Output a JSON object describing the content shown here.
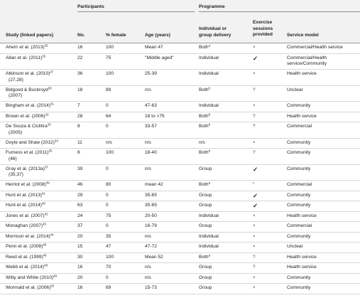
{
  "group_headers": {
    "participants": "Participants",
    "programme": "Programme"
  },
  "columns": {
    "study": "Study (linked papers)",
    "no": "No.",
    "female": "% female",
    "age": "Age (years)",
    "delivery": [
      "Individual or",
      "group delivery"
    ],
    "exercise": [
      "Exercise",
      "sessions",
      "provided"
    ],
    "service": "Service model"
  },
  "rows": [
    {
      "study": [
        "Ahern et al. (2013)"
      ],
      "study_sup": "25",
      "no": "16",
      "female": "100",
      "age": "Mean 47",
      "delivery": "Both",
      "delivery_sup": "a",
      "exercise": "x",
      "service": [
        "Commercial/Health service"
      ]
    },
    {
      "study": [
        "Allan et al. (2011)"
      ],
      "study_sup": "26",
      "no": "22",
      "female": "75",
      "age": "\"Middle aged\"",
      "delivery": "Individual",
      "delivery_sup": "",
      "exercise": "tick",
      "service": [
        "Commercial/Health",
        "service/Community"
      ]
    },
    {
      "study": [
        "Atkinson et al. (2010)",
        "(27,28)"
      ],
      "study_sup": "27",
      "no": "36",
      "female": "100",
      "age": "25-39",
      "delivery": "Individual",
      "delivery_sup": "",
      "exercise": "x",
      "service": [
        "Health service"
      ]
    },
    {
      "study": [
        "Bidgood & Buckroyd",
        "(2007)"
      ],
      "study_sup": "30",
      "no": "18",
      "female": "89",
      "age": "n/s",
      "delivery": "Both",
      "delivery_sup": "b",
      "exercise": "?",
      "service": [
        "Unclear"
      ]
    },
    {
      "study": [
        "Bingham et al. (2014)"
      ],
      "study_sup": "31",
      "no": "7",
      "female": "0",
      "age": "47-63",
      "delivery": "Individual",
      "delivery_sup": "",
      "exercise": "x",
      "service": [
        "Community"
      ]
    },
    {
      "study": [
        "Brown et al. (2006)"
      ],
      "study_sup": "32",
      "no": "28",
      "female": "64",
      "age": "18 to >75",
      "delivery": "Both",
      "delivery_sup": "b",
      "exercise": "?",
      "service": [
        "Health service"
      ]
    },
    {
      "study": [
        "De Souza & Ciclitira",
        "(2005)"
      ],
      "study_sup": "33",
      "no": "8",
      "female": "0",
      "age": "33-57",
      "delivery": "Both",
      "delivery_sup": "b",
      "exercise": "?",
      "service": [
        "Commercial"
      ]
    },
    {
      "study": [
        "Doyle and Shaw (2012)"
      ],
      "study_sup": "34",
      "no": "11",
      "female": "n/s",
      "age": "n/s",
      "delivery": "n/s",
      "delivery_sup": "",
      "exercise": "x",
      "service": [
        "Community"
      ]
    },
    {
      "study": [
        "Furness et al. (2011)",
        "(46)"
      ],
      "study_sup": "35",
      "no": "6",
      "female": "100",
      "age": "18-40",
      "delivery": "Both",
      "delivery_sup": "b",
      "exercise": "?",
      "service": [
        "Community"
      ]
    },
    {
      "study": [
        "Gray et al. (2013a)",
        "(35,37)"
      ],
      "study_sup": "37",
      "no": "39",
      "female": "0",
      "age": "n/s",
      "delivery": "Group",
      "delivery_sup": "",
      "exercise": "tick",
      "service": [
        "Community"
      ]
    },
    {
      "study": [
        "Herriot et al. (2008)"
      ],
      "study_sup": "39",
      "no": "46",
      "female": "80",
      "age": "mean 42",
      "delivery": "Both",
      "delivery_sup": "a",
      "exercise": "c",
      "service": [
        "Commercial"
      ]
    },
    {
      "study": [
        "Hunt et al. (2013)"
      ],
      "study_sup": "41",
      "no": "29",
      "female": "0",
      "age": "35-65",
      "delivery": "Group",
      "delivery_sup": "",
      "exercise": "tick",
      "service": [
        "Community"
      ]
    },
    {
      "study": [
        "Hunt et al. (2014)"
      ],
      "study_sup": "40",
      "no": "63",
      "female": "0",
      "age": "35-65",
      "delivery": "Group",
      "delivery_sup": "",
      "exercise": "tick",
      "service": [
        "Community"
      ]
    },
    {
      "study": [
        "Jones et al. (2007)"
      ],
      "study_sup": "42",
      "no": "24",
      "female": "75",
      "age": "20-50",
      "delivery": "Individual",
      "delivery_sup": "",
      "exercise": "x",
      "service": [
        "Health service"
      ]
    },
    {
      "study": [
        "Monaghan (2007)"
      ],
      "study_sup": "43",
      "no": "37",
      "female": "0",
      "age": "16-79",
      "delivery": "Group",
      "delivery_sup": "",
      "exercise": "x",
      "service": [
        "Commercial"
      ]
    },
    {
      "study": [
        "Morrison et al. (2014)"
      ],
      "study_sup": "44",
      "no": "20",
      "female": "35",
      "age": "n/s",
      "delivery": "Individual",
      "delivery_sup": "",
      "exercise": "x",
      "service": [
        "Community"
      ]
    },
    {
      "study": [
        "Penn et al. (2008)"
      ],
      "study_sup": "45",
      "no": "15",
      "female": "47",
      "age": "47-72",
      "delivery": "Individual",
      "delivery_sup": "",
      "exercise": "x",
      "service": [
        "Unclear"
      ]
    },
    {
      "study": [
        "Reed et al. (1999)"
      ],
      "study_sup": "46",
      "no": "30",
      "female": "100",
      "age": "Mean 52",
      "delivery": "Both",
      "delivery_sup": "a",
      "exercise": "?",
      "service": [
        "Health service"
      ]
    },
    {
      "study": [
        "Webb et al. (2014)"
      ],
      "study_sup": "48",
      "no": "16",
      "female": "70",
      "age": "n/s",
      "delivery": "Group",
      "delivery_sup": "",
      "exercise": "?",
      "service": [
        "Health service"
      ]
    },
    {
      "study": [
        "Witty and White (2010)"
      ],
      "study_sup": "49",
      "no": "20",
      "female": "0",
      "age": "n/s",
      "delivery": "Group",
      "delivery_sup": "",
      "exercise": "x",
      "service": [
        "Community"
      ]
    },
    {
      "study": [
        "Wormald et al. (2006)"
      ],
      "study_sup": "50",
      "no": "16",
      "female": "69",
      "age": "15-73",
      "delivery": "Group",
      "delivery_sup": "",
      "exercise": "x",
      "service": [
        "Community"
      ]
    }
  ]
}
